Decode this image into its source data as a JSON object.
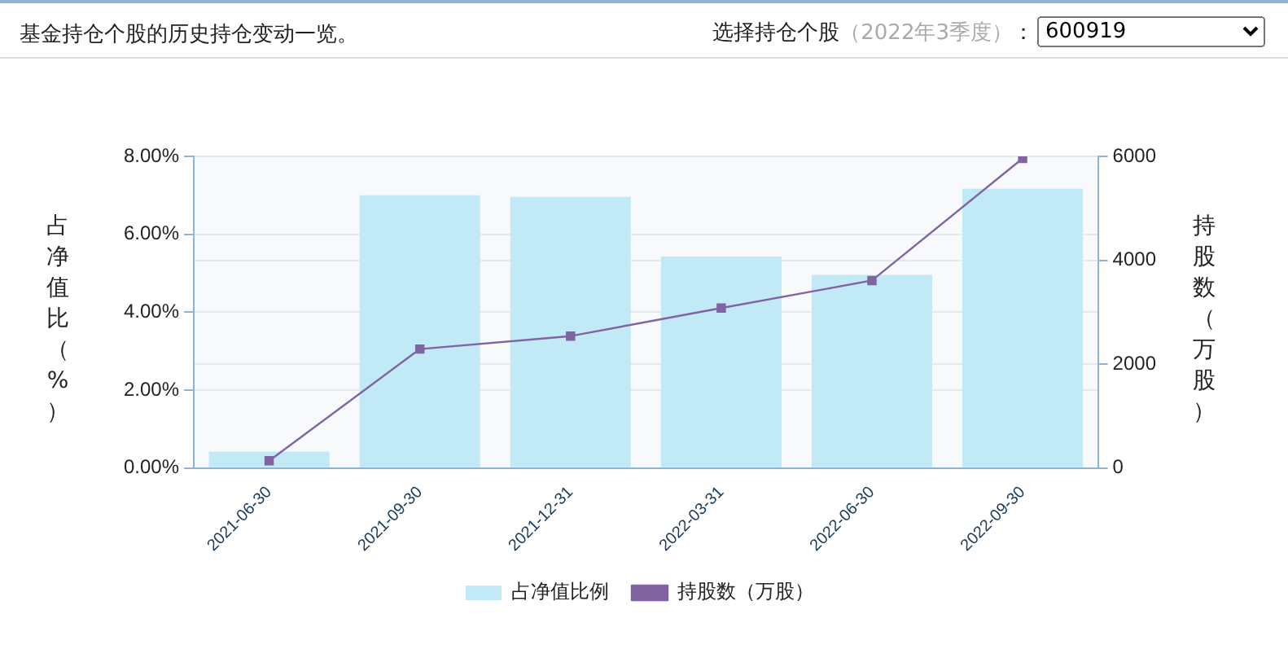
{
  "chart_data": {
    "type": "bar",
    "title": "基金持仓个股的历史持仓变动一览。",
    "annotations": [
      "选择持仓个股（2022年3季度）：",
      "600919"
    ],
    "ylabel": "占净值比（%）",
    "y2label": "持股数（万股）",
    "categories": [
      "2021-06-30",
      "2021-09-30",
      "2021-12-31",
      "2022-03-31",
      "2022-06-30",
      "2022-09-30"
    ],
    "series": [
      {
        "name": "占净值比例",
        "color": "#c2e9f6",
        "values": [
          0.42,
          7.0,
          6.96,
          5.43,
          4.96,
          7.17
        ]
      },
      {
        "name": "持股数（万股）",
        "type": "line",
        "axis": "y2",
        "color": "#8064a2",
        "marker": "square",
        "values": [
          140,
          2290,
          2540,
          3080,
          3610,
          5960
        ]
      }
    ],
    "ylim": [
      0,
      8
    ],
    "yticks": [
      {
        "value": 0,
        "label": "0.00%"
      },
      {
        "value": 2,
        "label": "2.00%"
      },
      {
        "value": 4,
        "label": "4.00%"
      },
      {
        "value": 6,
        "label": "6.00%"
      },
      {
        "value": 8,
        "label": "8.00%"
      }
    ],
    "y2lim": [
      0,
      6000
    ],
    "y2ticks": [
      0,
      2000,
      4000,
      6000
    ],
    "grid": "y",
    "legend": "bottom"
  }
}
